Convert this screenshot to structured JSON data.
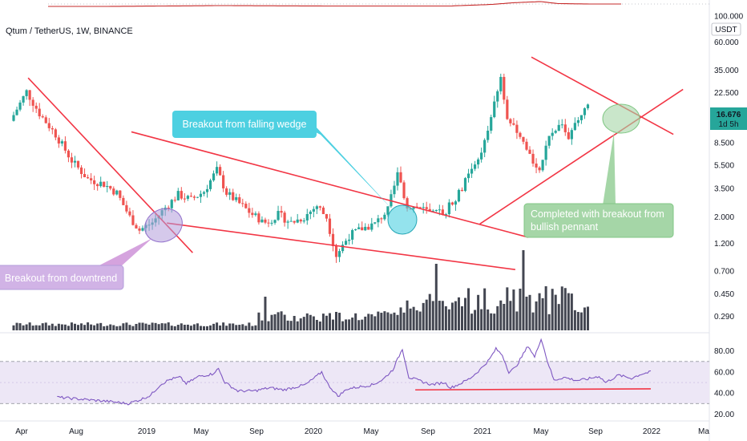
{
  "header": {
    "symbol_title": "Qtum / TetherUS, 1W, BINANCE"
  },
  "price_axis": {
    "unit": "USDT",
    "top_label": "100.000"
  },
  "last_price": {
    "value": "16.676",
    "countdown": "1d 5h",
    "color": "#26a69a"
  },
  "colors": {
    "up": "#26a69a",
    "down": "#ef5350",
    "volume": "#434651",
    "trendline": "#f23645",
    "rsi_line": "#7e57c2",
    "rsi_band": "#ede7f6"
  },
  "annotations": {
    "wedge": "Breakout from falling wedge",
    "downtrend": "Breakout from downtrend",
    "pennant_line1": "Completed with breakout from",
    "pennant_line2": "bullish pennant"
  },
  "chart_data": [
    {
      "type": "candlestick",
      "title": "Qtum / TetherUS, 1W, BINANCE",
      "y_scale": "log",
      "ylim": [
        0.25,
        100
      ],
      "y_ticks": [
        "0.290",
        "0.450",
        "0.700",
        "1.200",
        "2.000",
        "3.500",
        "5.500",
        "8.500",
        "13.500",
        "22.500",
        "35.000",
        "60.000",
        "100.000"
      ],
      "x_ticks": [
        "Apr",
        "Aug",
        "2019",
        "May",
        "Sep",
        "2020",
        "May",
        "Sep",
        "2021",
        "May",
        "Sep",
        "2022",
        "Ma"
      ],
      "x_range_weeks": [
        0,
        200
      ],
      "anchors": [
        [
          0,
          13
        ],
        [
          5,
          23
        ],
        [
          9,
          15
        ],
        [
          14,
          10
        ],
        [
          19,
          6
        ],
        [
          24,
          4.2
        ],
        [
          29,
          3.8
        ],
        [
          33,
          3.2
        ],
        [
          37,
          2.0
        ],
        [
          40,
          1.55
        ],
        [
          44,
          1.8
        ],
        [
          48,
          2.4
        ],
        [
          52,
          3.1
        ],
        [
          56,
          2.8
        ],
        [
          60,
          3.3
        ],
        [
          64,
          5.0
        ],
        [
          67,
          3.2
        ],
        [
          71,
          2.6
        ],
        [
          75,
          2.1
        ],
        [
          79,
          1.8
        ],
        [
          83,
          2.1
        ],
        [
          87,
          1.8
        ],
        [
          91,
          2.0
        ],
        [
          95,
          2.5
        ],
        [
          98,
          2.0
        ],
        [
          101,
          0.95
        ],
        [
          105,
          1.4
        ],
        [
          109,
          1.6
        ],
        [
          113,
          1.75
        ],
        [
          117,
          2.3
        ],
        [
          120,
          4.6
        ],
        [
          123,
          2.5
        ],
        [
          127,
          2.4
        ],
        [
          131,
          2.1
        ],
        [
          135,
          2.3
        ],
        [
          139,
          3.2
        ],
        [
          143,
          5.0
        ],
        [
          147,
          8.5
        ],
        [
          150,
          18
        ],
        [
          152,
          30
        ],
        [
          154,
          14
        ],
        [
          157,
          10
        ],
        [
          161,
          6.5
        ],
        [
          164,
          5.2
        ],
        [
          167,
          9
        ],
        [
          170,
          13
        ],
        [
          173,
          9.5
        ],
        [
          176,
          13
        ],
        [
          178,
          16.7
        ]
      ],
      "volume": {
        "ylim": [
          0,
          1
        ],
        "spikes": [
          [
            78,
            0.42
          ],
          [
            131,
            0.83
          ],
          [
            158,
            1.0
          ],
          [
            157,
            0.52
          ],
          [
            165,
            0.55
          ]
        ]
      },
      "trendlines": [
        {
          "name": "downtrend",
          "from": [
            5,
            30
          ],
          "to": [
            56,
            1.0
          ]
        },
        {
          "name": "wedge-top",
          "from": [
            37,
            10.5
          ],
          "to": [
            160,
            1.35
          ]
        },
        {
          "name": "wedge-bottom",
          "from": [
            48,
            1.78
          ],
          "to": [
            156,
            0.72
          ]
        },
        {
          "name": "pennant-top",
          "from": [
            161,
            45
          ],
          "to": [
            205,
            10
          ]
        },
        {
          "name": "pennant-bottom",
          "from": [
            145,
            1.75
          ],
          "to": [
            208,
            24
          ]
        }
      ]
    },
    {
      "type": "line",
      "indicator": "RSI",
      "ylim": [
        15,
        95
      ],
      "y_ticks": [
        "80.00",
        "60.00",
        "40.00",
        "20.00"
      ],
      "bands": [
        30,
        70
      ],
      "anchors": [
        [
          14,
          36
        ],
        [
          22,
          34
        ],
        [
          30,
          32
        ],
        [
          36,
          30
        ],
        [
          40,
          34
        ],
        [
          43,
          38
        ],
        [
          46,
          48
        ],
        [
          49,
          53
        ],
        [
          52,
          55
        ],
        [
          54,
          49
        ],
        [
          58,
          56
        ],
        [
          62,
          58
        ],
        [
          64,
          63
        ],
        [
          66,
          50
        ],
        [
          70,
          42
        ],
        [
          75,
          42
        ],
        [
          80,
          45
        ],
        [
          84,
          43
        ],
        [
          87,
          45
        ],
        [
          91,
          48
        ],
        [
          94,
          55
        ],
        [
          96,
          60
        ],
        [
          98,
          48
        ],
        [
          101,
          37
        ],
        [
          104,
          44
        ],
        [
          108,
          46
        ],
        [
          112,
          48
        ],
        [
          115,
          53
        ],
        [
          118,
          62
        ],
        [
          121,
          82
        ],
        [
          123,
          55
        ],
        [
          126,
          52
        ],
        [
          130,
          48
        ],
        [
          134,
          50
        ],
        [
          136,
          45
        ],
        [
          139,
          49
        ],
        [
          142,
          54
        ],
        [
          145,
          62
        ],
        [
          148,
          72
        ],
        [
          150,
          82
        ],
        [
          152,
          76
        ],
        [
          154,
          60
        ],
        [
          156,
          64
        ],
        [
          160,
          85
        ],
        [
          162,
          74
        ],
        [
          164,
          92
        ],
        [
          166,
          70
        ],
        [
          168,
          52
        ],
        [
          171,
          55
        ],
        [
          175,
          52
        ],
        [
          178,
          53
        ],
        [
          182,
          56
        ],
        [
          184,
          50
        ],
        [
          188,
          57
        ],
        [
          192,
          54
        ],
        [
          195,
          58
        ],
        [
          198,
          60
        ]
      ],
      "support_line": {
        "from": [
          125,
          43
        ],
        "to": [
          198,
          44
        ]
      }
    },
    {
      "type": "line",
      "indicator": "overview",
      "x_range_weeks": [
        0,
        200
      ],
      "anchors": [
        [
          0,
          0.6
        ],
        [
          20,
          0.6
        ],
        [
          60,
          0.5
        ],
        [
          100,
          0.55
        ],
        [
          140,
          0.55
        ],
        [
          155,
          0.35
        ],
        [
          162,
          0.15
        ],
        [
          168,
          0.05
        ],
        [
          172,
          0.0
        ],
        [
          178,
          0.25
        ],
        [
          190,
          0.3
        ],
        [
          200,
          0.3
        ]
      ]
    }
  ]
}
